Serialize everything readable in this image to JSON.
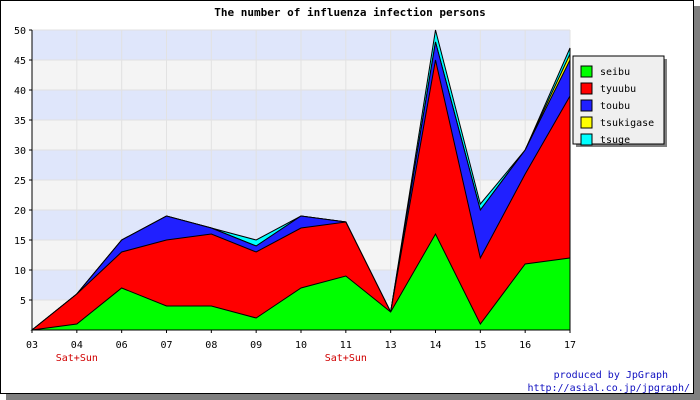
{
  "chart_data": {
    "type": "area",
    "stacked": true,
    "title": "The number of influenza infection persons",
    "categories": [
      "03",
      "04",
      "06",
      "07",
      "08",
      "09",
      "10",
      "11",
      "13",
      "14",
      "15",
      "16",
      "17"
    ],
    "category_sublabels": [
      "",
      "Sat+Sun",
      "",
      "",
      "",
      "",
      "",
      "Sat+Sun",
      "",
      "",
      "",
      "",
      ""
    ],
    "series": [
      {
        "name": "seibu",
        "color": "#00ff00",
        "values": [
          0,
          1,
          7,
          4,
          4,
          2,
          7,
          9,
          3,
          16,
          1,
          11,
          12
        ]
      },
      {
        "name": "tyuubu",
        "color": "#ff0000",
        "values": [
          0,
          5,
          6,
          11,
          12,
          11,
          10,
          9,
          0,
          29,
          11,
          15,
          27
        ]
      },
      {
        "name": "toubu",
        "color": "#2020ff",
        "values": [
          0,
          0,
          2,
          4,
          1,
          1,
          2,
          0,
          0,
          3,
          8,
          4,
          6
        ]
      },
      {
        "name": "tsukigase",
        "color": "#ffff00",
        "values": [
          0,
          0,
          0,
          0,
          0,
          0,
          0,
          0,
          0,
          0,
          0,
          0,
          1
        ]
      },
      {
        "name": "tsuge",
        "color": "#00ffff",
        "values": [
          0,
          0,
          0,
          0,
          0,
          1,
          0,
          0,
          0,
          2,
          1,
          0,
          1
        ]
      }
    ],
    "ylim": [
      0,
      50
    ],
    "yticks": [
      5,
      10,
      15,
      20,
      25,
      30,
      35,
      40,
      45,
      50
    ],
    "grid": true,
    "legend_position": "right"
  },
  "credit": {
    "line1": "produced by JpGraph",
    "line2": "http://asial.co.jp/jpgraph/"
  }
}
